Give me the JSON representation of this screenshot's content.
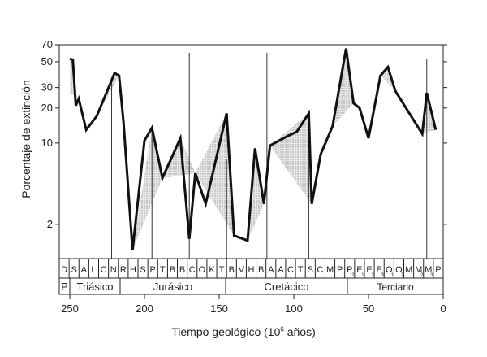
{
  "chart_data": {
    "type": "line",
    "ylabel": "Porcentaje de extinción",
    "xlabel": {
      "before": "Tiempo geológico (10",
      "sup": "6",
      "after": " años)"
    },
    "y_scale": "log",
    "ylim": [
      1,
      70
    ],
    "xlim": [
      252,
      0
    ],
    "y_ticks": [
      2,
      10,
      20,
      30,
      50,
      70
    ],
    "x_ticks": [
      250,
      200,
      150,
      100,
      50,
      0
    ],
    "series": [
      {
        "values": [
          {
            "x": 250,
            "y": 53
          },
          {
            "x": 248,
            "y": 52
          },
          {
            "x": 246,
            "y": 21
          },
          {
            "x": 244,
            "y": 24
          },
          {
            "x": 239,
            "y": 13
          },
          {
            "x": 232,
            "y": 17
          },
          {
            "x": 220,
            "y": 40
          },
          {
            "x": 217,
            "y": 38
          },
          {
            "x": 214,
            "y": 15
          },
          {
            "x": 208,
            "y": 1.2
          },
          {
            "x": 200,
            "y": 10.5
          },
          {
            "x": 195,
            "y": 13.5
          },
          {
            "x": 188,
            "y": 5
          },
          {
            "x": 176,
            "y": 11
          },
          {
            "x": 170,
            "y": 1.5
          },
          {
            "x": 166,
            "y": 5.5
          },
          {
            "x": 159,
            "y": 3
          },
          {
            "x": 145,
            "y": 18
          },
          {
            "x": 140,
            "y": 1.6
          },
          {
            "x": 131,
            "y": 1.45
          },
          {
            "x": 126,
            "y": 9
          },
          {
            "x": 120,
            "y": 3
          },
          {
            "x": 116,
            "y": 9.5
          },
          {
            "x": 104,
            "y": 11.5
          },
          {
            "x": 98,
            "y": 12.5
          },
          {
            "x": 90,
            "y": 18
          },
          {
            "x": 88,
            "y": 3
          },
          {
            "x": 82,
            "y": 8
          },
          {
            "x": 74,
            "y": 14
          },
          {
            "x": 65,
            "y": 65
          },
          {
            "x": 60,
            "y": 22
          },
          {
            "x": 56,
            "y": 20
          },
          {
            "x": 50,
            "y": 11
          },
          {
            "x": 42,
            "y": 38
          },
          {
            "x": 37,
            "y": 45
          },
          {
            "x": 32,
            "y": 28
          },
          {
            "x": 14,
            "y": 12
          },
          {
            "x": 11,
            "y": 27
          },
          {
            "x": 5,
            "y": 13
          }
        ]
      }
    ],
    "stages": [
      "D",
      "S",
      "A",
      "L",
      "C",
      "N",
      "R",
      "H",
      "S",
      "P",
      "T",
      "B",
      "B",
      "C",
      "O",
      "K",
      "T",
      "B",
      "V",
      "H",
      "B",
      "A",
      "A",
      "C",
      "T",
      "S",
      "C",
      "M",
      "P",
      "P",
      "E",
      "E",
      "E",
      "O",
      "O",
      "M",
      "M",
      "M",
      "P"
    ],
    "stage_subscripts": [
      "",
      "",
      "",
      "",
      "",
      "",
      "",
      "",
      "",
      "",
      "",
      "",
      "",
      "",
      "",
      "",
      "",
      "",
      "",
      "",
      "",
      "",
      "",
      "",
      "",
      "",
      "",
      "",
      "1",
      "2",
      "1",
      "2",
      "3",
      "1",
      "2",
      "1",
      "2",
      "3",
      ""
    ],
    "periods": [
      "P",
      "Triásico",
      "Jurásico",
      "Cretácico",
      "Terciario"
    ],
    "grid": false,
    "fill_color": "#bdbdbd",
    "line_color": "#111111"
  }
}
